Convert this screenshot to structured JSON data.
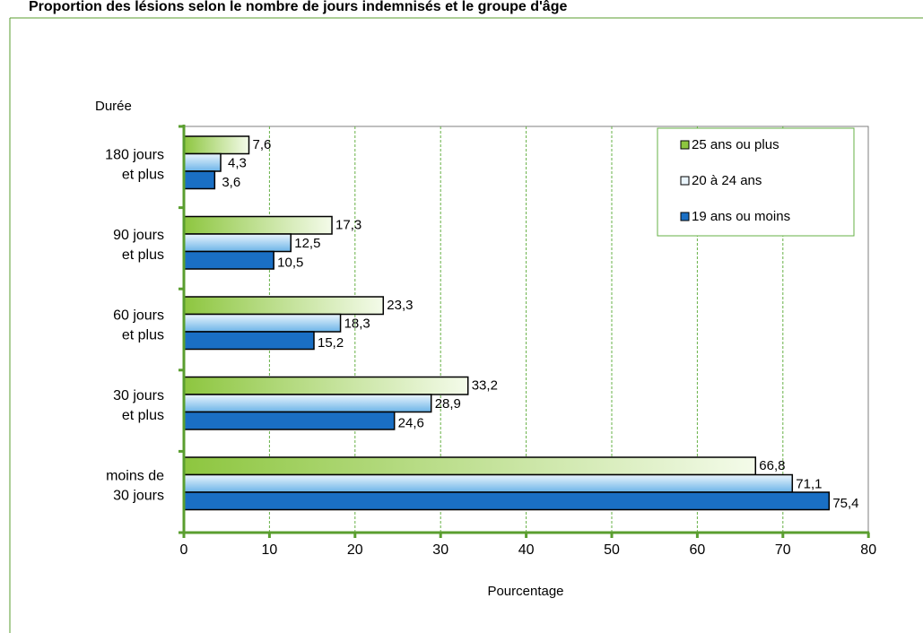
{
  "chart_data": {
    "type": "bar",
    "orientation": "horizontal",
    "title": "Proportion des lésions selon le nombre de jours indemnisés et le groupe d'âge",
    "categories": [
      "180 jours et plus",
      "90 jours et plus",
      "60 jours et plus",
      "30 jours et plus",
      "moins de 30 jours"
    ],
    "category_lines": [
      [
        "180 jours",
        "et plus"
      ],
      [
        "90 jours",
        "et plus"
      ],
      [
        "60 jours",
        "et plus"
      ],
      [
        "30 jours",
        "et plus"
      ],
      [
        "moins de",
        "30 jours"
      ]
    ],
    "series": [
      {
        "name": "25 ans ou plus",
        "values": [
          7.6,
          17.3,
          23.3,
          33.2,
          66.8
        ]
      },
      {
        "name": "20 à 24 ans",
        "values": [
          4.3,
          12.5,
          18.3,
          28.9,
          71.1
        ]
      },
      {
        "name": "19 ans ou moins",
        "values": [
          3.6,
          10.5,
          15.2,
          24.6,
          75.4
        ]
      }
    ],
    "value_labels": [
      [
        "7,6",
        "17,3",
        "23,3",
        "33,2",
        "66,8"
      ],
      [
        "4,3",
        "12,5",
        "18,3",
        "28,9",
        "71,1"
      ],
      [
        "3,6",
        "10,5",
        "15,2",
        "24,6",
        "75,4"
      ]
    ],
    "xlabel": "Pourcentage",
    "ylabel": "Durée",
    "xlim": [
      0,
      80
    ],
    "xticks": [
      0,
      10,
      20,
      30,
      40,
      50,
      60,
      70,
      80
    ],
    "grid": "vertical dashed",
    "legend_position": "top-right",
    "colors": {
      "series": [
        "#8dc63f",
        "#6cb4e8",
        "#1a6fc4"
      ],
      "series_light": [
        "#f4fbea",
        "#eaf5fd",
        "#1a6fc4"
      ],
      "axis": "#5a9e2f",
      "grid": "#66b045",
      "frame": "#7f7f7f"
    }
  }
}
